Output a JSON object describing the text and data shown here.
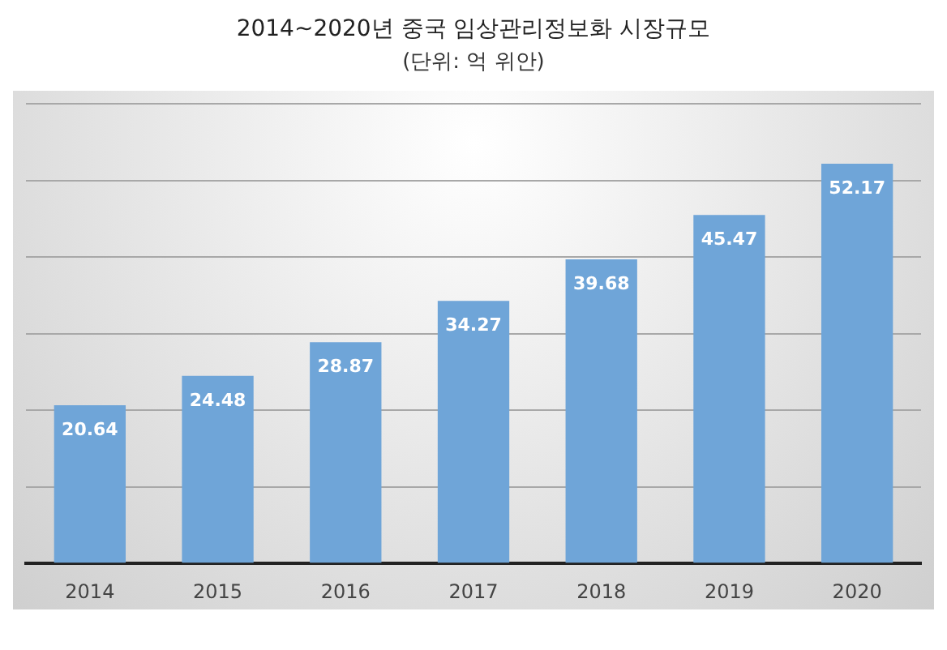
{
  "chart_data": {
    "type": "bar",
    "title": "2014~2020년 중국 임상관리정보화 시장규모",
    "subtitle": "(단위: 억 위안)",
    "categories": [
      "2014",
      "2015",
      "2016",
      "2017",
      "2018",
      "2019",
      "2020"
    ],
    "values": [
      20.64,
      24.48,
      28.87,
      34.27,
      39.68,
      45.47,
      52.17
    ],
    "color": "#6fa5d8",
    "ylim": [
      0,
      60
    ],
    "yticks": [
      {
        "value": 0,
        "label": null
      },
      {
        "value": 10,
        "label": null
      },
      {
        "value": 20,
        "label": null
      },
      {
        "value": 30,
        "label": null
      },
      {
        "value": 40,
        "label": null
      },
      {
        "value": 50,
        "label": null
      },
      {
        "value": 60,
        "label": null
      }
    ],
    "grid": "y",
    "tick_labels": "x",
    "data_labels": true
  }
}
